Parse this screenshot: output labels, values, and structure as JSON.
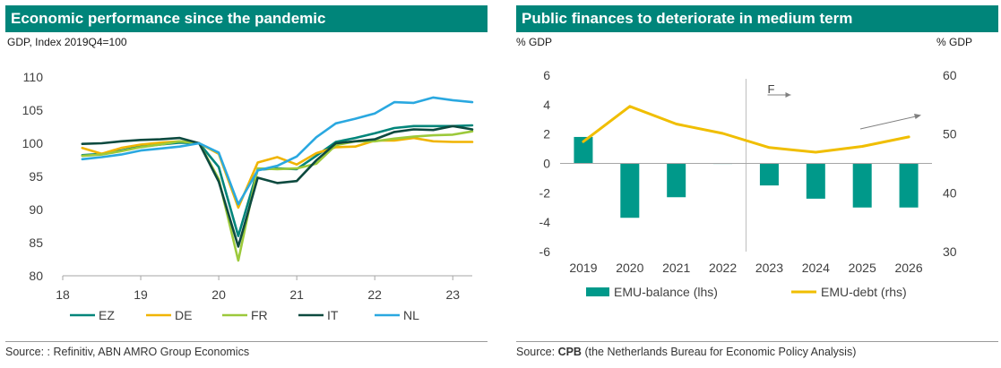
{
  "left": {
    "title": "Economic performance since the pandemic",
    "subtitle": "GDP, Index 2019Q4=100",
    "source": "Source: : Refinitiv, ABN AMRO Group Economics"
  },
  "right": {
    "title": "Public finances to deteriorate in medium term",
    "ylabel_left": "% GDP",
    "ylabel_right": "% GDP",
    "source_prefix": "Source: ",
    "source_bold": "CPB",
    "source_rest": " (the Netherlands Bureau for Economic Policy Analysis)",
    "annotation": "F"
  },
  "colors": {
    "teal": "#00857a",
    "EZ": "#00857a",
    "DE": "#f0b400",
    "FR": "#9cc93b",
    "IT": "#0d4a3f",
    "NL": "#2aa8e0",
    "balance": "#00998a",
    "debt": "#f0be00"
  },
  "chart_data": [
    {
      "type": "line",
      "title": "Economic performance since the pandemic",
      "ylabel": "GDP, Index 2019Q4=100",
      "xlabel": "",
      "xlim": [
        18.0,
        23.25
      ],
      "ylim": [
        80,
        110
      ],
      "yticks": [
        80,
        85,
        90,
        95,
        100,
        105,
        110
      ],
      "xticks": [
        "18",
        "19",
        "20",
        "21",
        "22",
        "23"
      ],
      "x": [
        18.25,
        18.5,
        18.75,
        19.0,
        19.25,
        19.5,
        19.75,
        20.0,
        20.25,
        20.5,
        20.75,
        21.0,
        21.25,
        21.5,
        21.75,
        22.0,
        22.25,
        22.5,
        22.75,
        23.0,
        23.25
      ],
      "series": [
        {
          "name": "EZ",
          "values": [
            98.2,
            98.4,
            98.9,
            99.5,
            99.8,
            100.1,
            100.0,
            96.4,
            86.0,
            96.0,
            96.2,
            96.1,
            98.1,
            100.2,
            100.8,
            101.5,
            102.3,
            102.6,
            102.6,
            102.6,
            102.7
          ]
        },
        {
          "name": "DE",
          "values": [
            99.3,
            98.4,
            99.3,
            99.8,
            100.1,
            100.3,
            100.0,
            98.4,
            90.3,
            97.1,
            97.9,
            96.8,
            98.5,
            99.4,
            99.5,
            100.4,
            100.4,
            100.8,
            100.3,
            100.2,
            100.2
          ]
        },
        {
          "name": "FR",
          "values": [
            98.1,
            98.3,
            98.8,
            99.4,
            99.8,
            100.3,
            100.0,
            94.6,
            82.3,
            96.2,
            96.1,
            96.2,
            96.9,
            99.7,
            100.3,
            100.3,
            100.7,
            101.0,
            101.2,
            101.3,
            101.8
          ]
        },
        {
          "name": "IT",
          "values": [
            99.9,
            100.0,
            100.3,
            100.5,
            100.6,
            100.8,
            100.0,
            94.2,
            84.4,
            94.8,
            94.0,
            94.3,
            97.4,
            100.0,
            100.3,
            100.6,
            101.7,
            102.1,
            102.0,
            102.6,
            102.1
          ]
        },
        {
          "name": "NL",
          "values": [
            97.6,
            97.9,
            98.3,
            98.9,
            99.2,
            99.5,
            100.0,
            98.6,
            90.8,
            95.9,
            96.6,
            98.0,
            100.9,
            103.0,
            103.7,
            104.5,
            106.2,
            106.1,
            106.9,
            106.5,
            106.2
          ]
        }
      ],
      "legend": "bottom",
      "grid": false
    },
    {
      "type": "bar+line",
      "title": "Public finances to deteriorate in medium term",
      "categories": [
        "2019",
        "2020",
        "2021",
        "2022",
        "2023",
        "2024",
        "2025",
        "2026"
      ],
      "series": [
        {
          "name": "EMU-balance (lhs)",
          "type": "bar",
          "axis": "left",
          "values": [
            1.8,
            -3.7,
            -2.3,
            0.0,
            -1.5,
            -2.4,
            -3.0,
            -3.0
          ]
        },
        {
          "name": "EMU-debt (rhs)",
          "type": "line",
          "axis": "right",
          "values": [
            48.7,
            54.7,
            51.7,
            50.1,
            47.7,
            46.9,
            47.9,
            49.5
          ]
        }
      ],
      "ylim_left": [
        -6,
        6
      ],
      "yticks_left": [
        -6,
        -4,
        -2,
        0,
        2,
        4,
        6
      ],
      "ylim_right": [
        30,
        60
      ],
      "yticks_right": [
        30,
        40,
        50,
        60
      ],
      "forecast_from": "2023",
      "legend": "bottom",
      "grid": false
    }
  ]
}
